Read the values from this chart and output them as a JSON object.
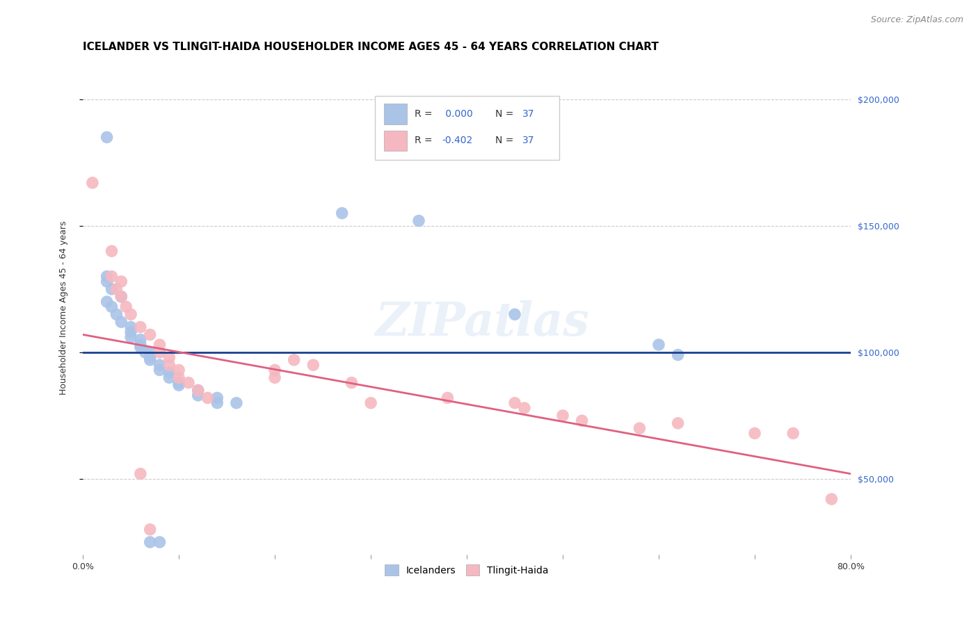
{
  "title": "ICELANDER VS TLINGIT-HAIDA HOUSEHOLDER INCOME AGES 45 - 64 YEARS CORRELATION CHART",
  "source": "Source: ZipAtlas.com",
  "ylabel": "Householder Income Ages 45 - 64 years",
  "legend_label1": "Icelanders",
  "legend_label2": "Tlingit-Haida",
  "r1": "0.000",
  "r2": "-0.402",
  "n1": "37",
  "n2": "37",
  "xmin": 0.0,
  "xmax": 0.8,
  "ymin": 20000,
  "ymax": 215000,
  "yticks": [
    50000,
    100000,
    150000,
    200000
  ],
  "xticks": [
    0.0,
    0.1,
    0.2,
    0.3,
    0.4,
    0.5,
    0.6,
    0.7,
    0.8
  ],
  "xtick_labels": [
    "0.0%",
    "",
    "",
    "",
    "",
    "",
    "",
    "",
    "80.0%"
  ],
  "color_blue": "#aac4e8",
  "color_pink": "#f5b8c0",
  "line_blue": "#1a3f8f",
  "line_pink": "#e06080",
  "watermark": "ZIPatlas",
  "blue_points": [
    [
      0.025,
      185000
    ],
    [
      0.27,
      155000
    ],
    [
      0.35,
      152000
    ],
    [
      0.025,
      130000
    ],
    [
      0.025,
      128000
    ],
    [
      0.03,
      125000
    ],
    [
      0.04,
      122000
    ],
    [
      0.025,
      120000
    ],
    [
      0.03,
      118000
    ],
    [
      0.035,
      115000
    ],
    [
      0.04,
      112000
    ],
    [
      0.05,
      110000
    ],
    [
      0.05,
      108000
    ],
    [
      0.05,
      106000
    ],
    [
      0.06,
      105000
    ],
    [
      0.06,
      103000
    ],
    [
      0.06,
      102000
    ],
    [
      0.065,
      100000
    ],
    [
      0.07,
      100000
    ],
    [
      0.07,
      98000
    ],
    [
      0.07,
      97000
    ],
    [
      0.08,
      95000
    ],
    [
      0.08,
      93000
    ],
    [
      0.09,
      92000
    ],
    [
      0.09,
      90000
    ],
    [
      0.1,
      88000
    ],
    [
      0.1,
      87000
    ],
    [
      0.12,
      85000
    ],
    [
      0.12,
      83000
    ],
    [
      0.14,
      82000
    ],
    [
      0.14,
      80000
    ],
    [
      0.16,
      80000
    ],
    [
      0.45,
      115000
    ],
    [
      0.6,
      103000
    ],
    [
      0.62,
      99000
    ],
    [
      0.07,
      25000
    ],
    [
      0.08,
      25000
    ]
  ],
  "pink_points": [
    [
      0.01,
      167000
    ],
    [
      0.03,
      140000
    ],
    [
      0.03,
      130000
    ],
    [
      0.04,
      128000
    ],
    [
      0.035,
      125000
    ],
    [
      0.04,
      122000
    ],
    [
      0.045,
      118000
    ],
    [
      0.05,
      115000
    ],
    [
      0.06,
      110000
    ],
    [
      0.07,
      107000
    ],
    [
      0.08,
      103000
    ],
    [
      0.08,
      100000
    ],
    [
      0.09,
      98000
    ],
    [
      0.09,
      95000
    ],
    [
      0.1,
      93000
    ],
    [
      0.1,
      90000
    ],
    [
      0.11,
      88000
    ],
    [
      0.12,
      85000
    ],
    [
      0.13,
      82000
    ],
    [
      0.22,
      97000
    ],
    [
      0.24,
      95000
    ],
    [
      0.2,
      93000
    ],
    [
      0.2,
      90000
    ],
    [
      0.28,
      88000
    ],
    [
      0.3,
      80000
    ],
    [
      0.38,
      82000
    ],
    [
      0.45,
      80000
    ],
    [
      0.46,
      78000
    ],
    [
      0.5,
      75000
    ],
    [
      0.52,
      73000
    ],
    [
      0.58,
      70000
    ],
    [
      0.62,
      72000
    ],
    [
      0.7,
      68000
    ],
    [
      0.74,
      68000
    ],
    [
      0.78,
      42000
    ],
    [
      0.06,
      52000
    ],
    [
      0.07,
      30000
    ]
  ],
  "title_fontsize": 11,
  "source_fontsize": 9,
  "axis_label_fontsize": 9,
  "tick_fontsize": 9,
  "legend_fontsize": 10
}
